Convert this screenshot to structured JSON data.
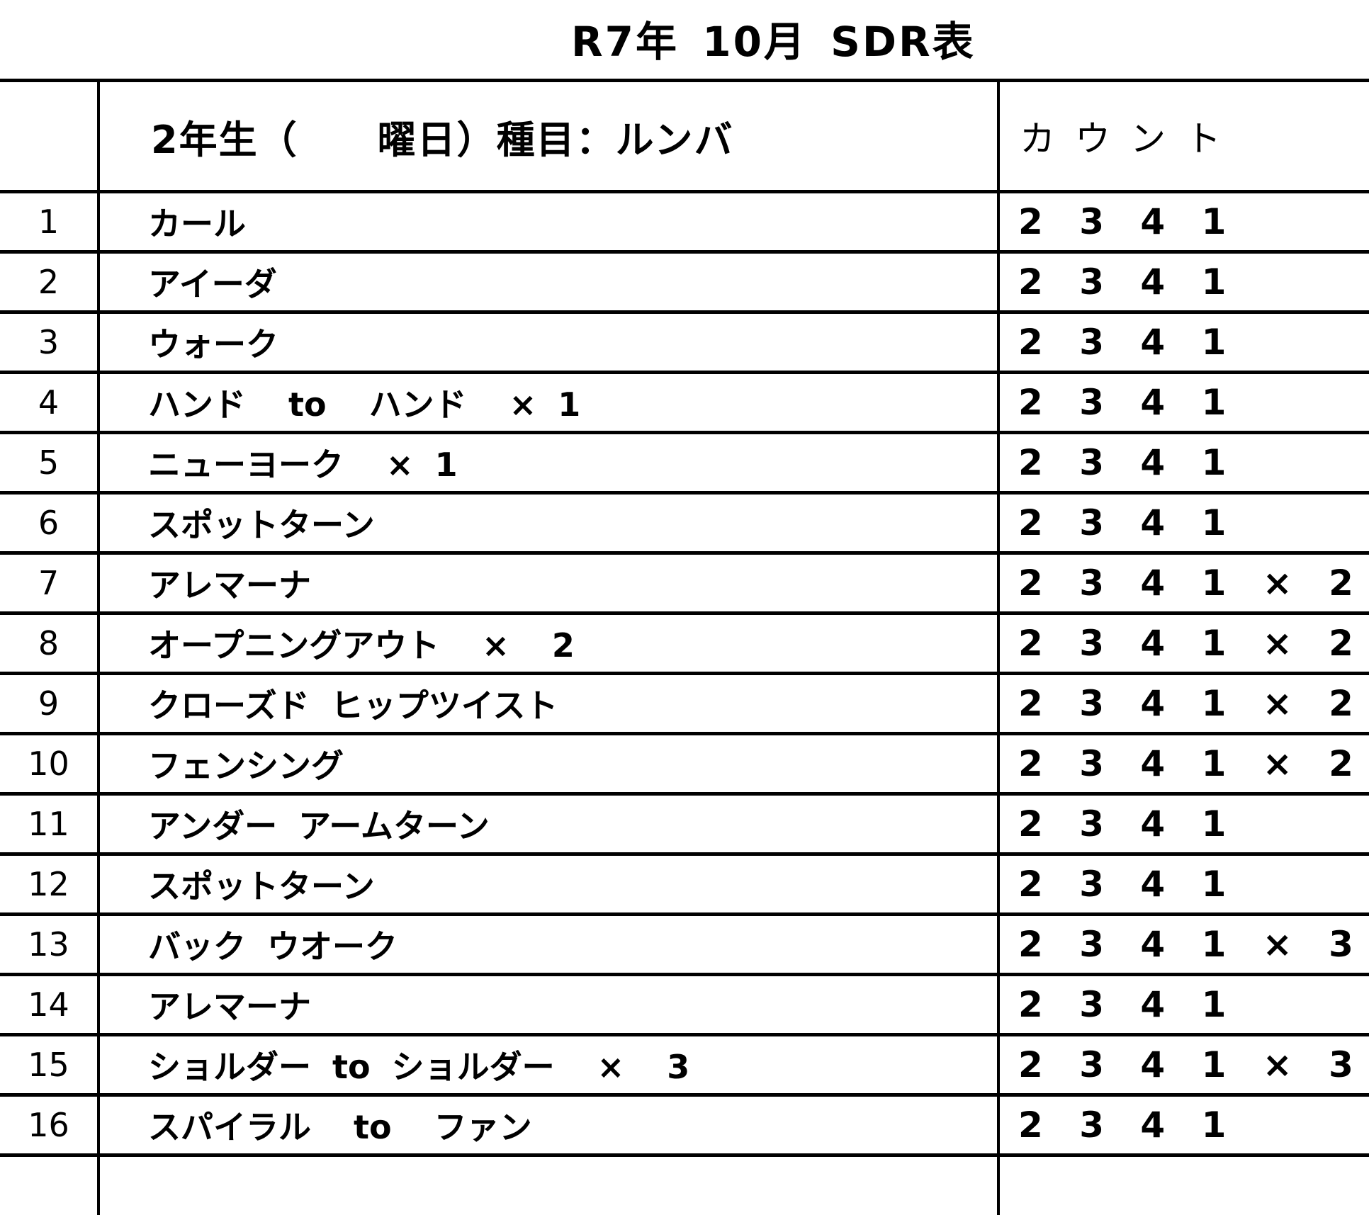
{
  "title": "R7年 10月 SDR表",
  "header": {
    "class_label": "2年生（　　曜日）種目：ルンバ",
    "count_label": "カウント"
  },
  "rows": [
    {
      "no": "1",
      "name": "カール",
      "count": "2 3 4 1"
    },
    {
      "no": "2",
      "name": "アイーダ",
      "count": "2 3 4 1"
    },
    {
      "no": "3",
      "name": "ウォーク",
      "count": "2 3 4 1"
    },
    {
      "no": "4",
      "name": "ハンド  to  ハンド  × 1",
      "count": "2 3 4 1"
    },
    {
      "no": "5",
      "name": "ニューヨーク  × 1",
      "count": "2 3 4 1"
    },
    {
      "no": "6",
      "name": "スポットターン",
      "count": "2 3 4 1"
    },
    {
      "no": "7",
      "name": "アレマーナ",
      "count": "2 3 4 1 × 2"
    },
    {
      "no": "8",
      "name": "オープニングアウト  ×  2",
      "count": "2 3 4 1 × 2"
    },
    {
      "no": "9",
      "name": "クローズド ヒップツイスト",
      "count": "2 3 4 1 × 2"
    },
    {
      "no": "10",
      "name": "フェンシング",
      "count": "2 3 4 1 × 2"
    },
    {
      "no": "11",
      "name": "アンダー アームターン",
      "count": "2 3 4 1"
    },
    {
      "no": "12",
      "name": "スポットターン",
      "count": "2 3 4 1"
    },
    {
      "no": "13",
      "name": "バック ウオーク",
      "count": "2 3 4 1 × 3"
    },
    {
      "no": "14",
      "name": "アレマーナ",
      "count": "2 3 4 1"
    },
    {
      "no": "15",
      "name": "ショルダー to ショルダー  ×  3",
      "count": "2 3 4 1 × 3"
    },
    {
      "no": "16",
      "name": "スパイラル  to  ファン",
      "count": "2 3 4 1"
    }
  ]
}
